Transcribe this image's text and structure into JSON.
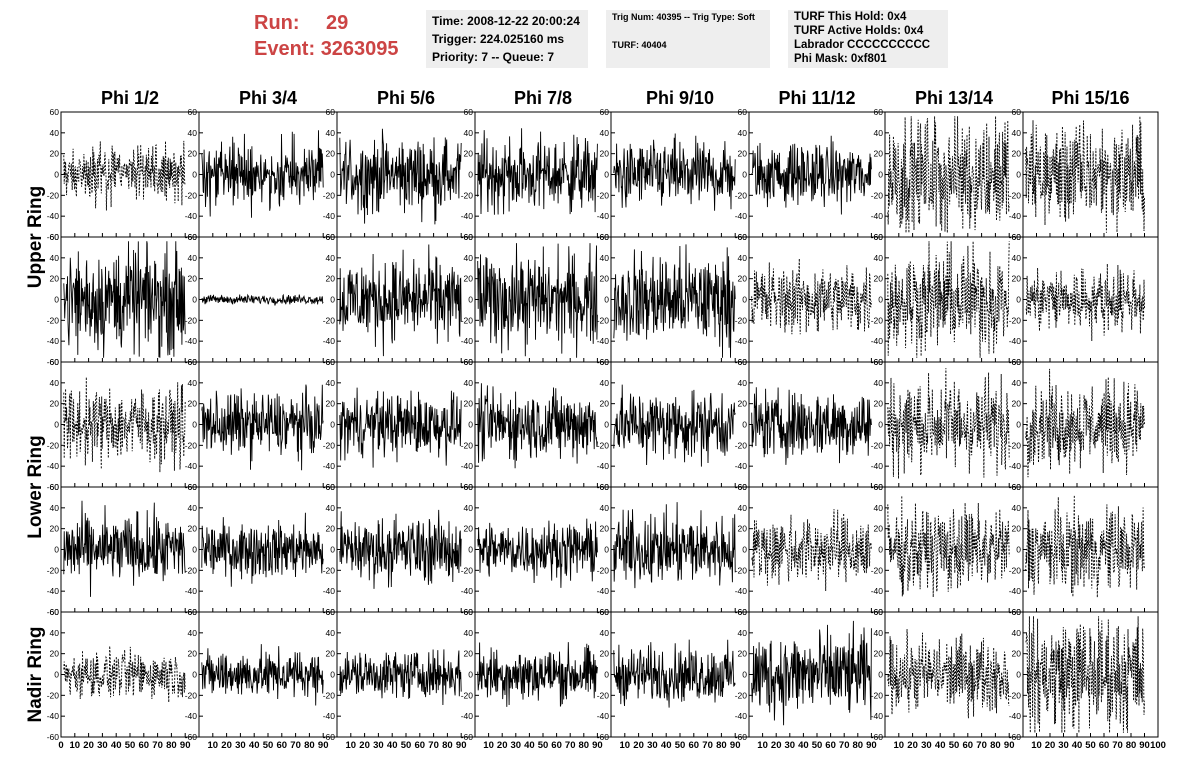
{
  "run": {
    "run_label": "Run:",
    "run_value": "29",
    "event_label": "Event:",
    "event_value": "3263095"
  },
  "header_box1": {
    "line1": "Time: 2008-12-22 20:00:24",
    "line2": "Trigger: 224.025160 ms",
    "line3": "Priority: 7 -- Queue: 7"
  },
  "header_box2": {
    "line1": "Trig Num: 40395 -- Trig Type: Soft",
    "line2": "TURF: 40404"
  },
  "header_box3": {
    "line1": "TURF This Hold: 0x4",
    "line2": "TURF Active Holds: 0x4",
    "line3": "Labrador CCCCCCCCCC",
    "line4": "Phi Mask: 0xf801"
  },
  "colors": {
    "text_accent": "#cc4444",
    "box_bg": "#eeeeee",
    "trace": "#000000"
  },
  "chart_data": {
    "type": "line",
    "columns": [
      "Phi 1/2",
      "Phi 3/4",
      "Phi 5/6",
      "Phi 7/8",
      "Phi 9/10",
      "Phi 11/12",
      "Phi 13/14",
      "Phi 15/16"
    ],
    "row_groups": [
      {
        "label": "Upper Ring",
        "rows": [
          0,
          1
        ]
      },
      {
        "label": "Lower Ring",
        "rows": [
          2,
          3
        ]
      },
      {
        "label": "Nadir Ring",
        "rows": [
          4
        ]
      }
    ],
    "ylim": [
      -60,
      60
    ],
    "yticks": [
      -60,
      -40,
      -20,
      0,
      20,
      40,
      60
    ],
    "xlim": [
      0,
      100
    ],
    "xticks": [
      0,
      10,
      20,
      30,
      40,
      50,
      60,
      70,
      80,
      90,
      100
    ],
    "last_xtick_label": "100",
    "panel_amplitude": [
      [
        12,
        14,
        16,
        16,
        14,
        13,
        25,
        22
      ],
      [
        22,
        2,
        18,
        20,
        20,
        15,
        22,
        14
      ],
      [
        16,
        14,
        14,
        15,
        15,
        15,
        20,
        18
      ],
      [
        15,
        12,
        14,
        12,
        15,
        15,
        18,
        18
      ],
      [
        10,
        10,
        10,
        12,
        12,
        18,
        16,
        25
      ]
    ],
    "panel_style": [
      [
        "dashed",
        "solid",
        "solid",
        "solid",
        "solid",
        "solid",
        "dashed",
        "dashed"
      ],
      [
        "solid",
        "solid",
        "solid",
        "solid",
        "solid",
        "dashed",
        "dashed",
        "dashed"
      ],
      [
        "dashed",
        "solid",
        "solid",
        "solid",
        "solid",
        "solid",
        "dashed",
        "dashed"
      ],
      [
        "solid",
        "solid",
        "solid",
        "solid",
        "solid",
        "dashed",
        "dashed",
        "dashed"
      ],
      [
        "dashed",
        "solid",
        "solid",
        "solid",
        "solid",
        "solid",
        "dashed",
        "dashed"
      ]
    ]
  }
}
